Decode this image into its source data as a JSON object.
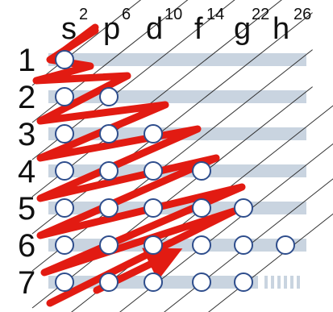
{
  "diagram": {
    "colors": {
      "band": "#c9d4e0",
      "circle_stroke": "#2e4d8c",
      "circle_fill": "#ffffff",
      "arrow": "#e21b12",
      "diagonal": "#333333",
      "text": "#111111"
    },
    "columns": [
      {
        "letter": "s",
        "capacity": "2"
      },
      {
        "letter": "p",
        "capacity": "6"
      },
      {
        "letter": "d",
        "capacity": "10"
      },
      {
        "letter": "f",
        "capacity": "14"
      },
      {
        "letter": "g",
        "capacity": "22"
      },
      {
        "letter": "h",
        "capacity": "26"
      }
    ],
    "rows": [
      {
        "label": "1",
        "filled": 1
      },
      {
        "label": "2",
        "filled": 2
      },
      {
        "label": "3",
        "filled": 3
      },
      {
        "label": "4",
        "filled": 4
      },
      {
        "label": "5",
        "filled": 5
      },
      {
        "label": "6",
        "filled": 6
      },
      {
        "label": "7",
        "filled": 5
      }
    ]
  }
}
